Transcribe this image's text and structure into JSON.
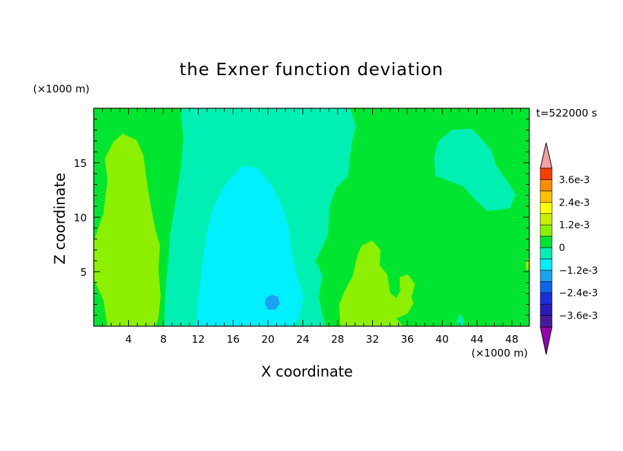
{
  "title": "the Exner function deviation",
  "time_label": "t=522000 s",
  "chart_data": {
    "type": "heatmap",
    "xlabel": "X coordinate",
    "ylabel": "Z coordinate",
    "x_unit": "(×1000 m)",
    "y_unit": "(×1000 m)",
    "xlim": [
      0,
      50
    ],
    "ylim": [
      0,
      20
    ],
    "x_ticks": [
      4,
      8,
      12,
      16,
      20,
      24,
      28,
      32,
      36,
      40,
      44,
      48
    ],
    "y_ticks": [
      5,
      10,
      15
    ],
    "colorbar": {
      "labels": [
        "3.6e-3",
        "2.4e-3",
        "1.2e-3",
        "0",
        "−1.2e-3",
        "−2.4e-3",
        "−3.6e-3"
      ],
      "label_values": [
        0.0036,
        0.0024,
        0.0012,
        0,
        -0.0012,
        -0.0024,
        -0.0036
      ],
      "levels": [
        -0.0042,
        -0.0036,
        -0.003,
        -0.0024,
        -0.0018,
        -0.0012,
        -0.0006,
        0,
        0.0006,
        0.0012,
        0.0018,
        0.0024,
        0.003,
        0.0036,
        0.0042
      ],
      "colors": [
        "#9400b0",
        "#4a1a9e",
        "#2a1ab8",
        "#1a2ee0",
        "#0a66ee",
        "#1aa2f0",
        "#00f0ff",
        "#00f0b4",
        "#00e630",
        "#8cf000",
        "#c8f000",
        "#ffff00",
        "#ffc000",
        "#ff8c00",
        "#ff3c00",
        "#f5a0a0"
      ],
      "extend": "both"
    },
    "field_regions": [
      {
        "name": "background",
        "value": 0.0001
      },
      {
        "name": "positive-left-column",
        "value": 0.0008
      },
      {
        "name": "negative-central-column",
        "value": -0.0003
      },
      {
        "name": "negative-central-core",
        "value": -0.0009
      },
      {
        "name": "negative-minimum",
        "value": -0.0015
      },
      {
        "name": "positive-bottom-patch",
        "value": 0.0008
      },
      {
        "name": "negative-right-patch",
        "value": -0.0003
      }
    ]
  }
}
